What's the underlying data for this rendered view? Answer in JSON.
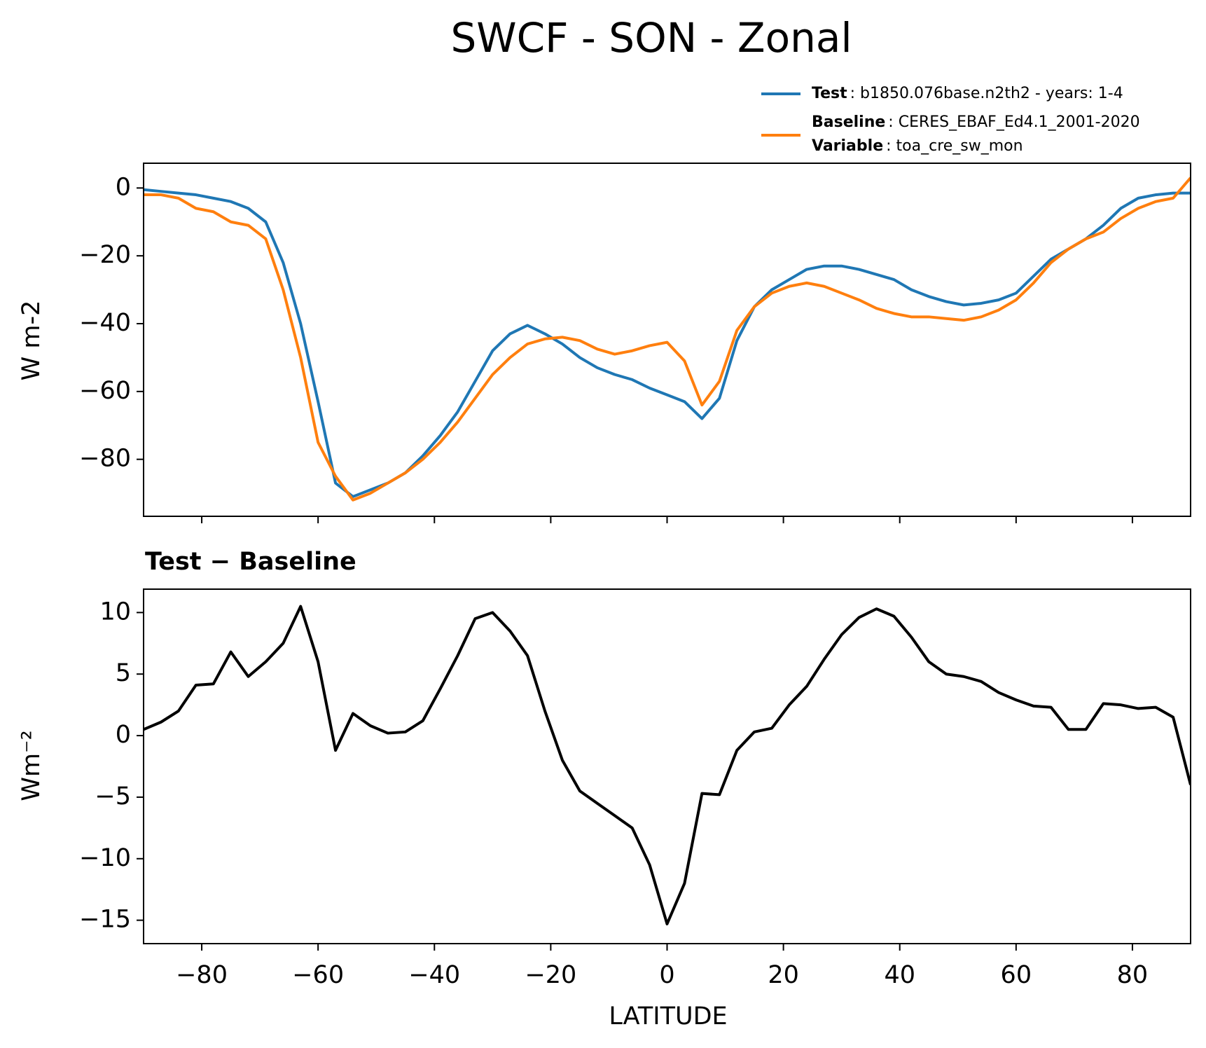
{
  "chart_data": [
    {
      "type": "line",
      "title": "SWCF - SON - Zonal",
      "ylabel": "W m-2",
      "x": [
        -90,
        -87,
        -84,
        -81,
        -78,
        -75,
        -72,
        -69,
        -66,
        -63,
        -60,
        -57,
        -54,
        -51,
        -48,
        -45,
        -42,
        -39,
        -36,
        -33,
        -30,
        -27,
        -24,
        -21,
        -18,
        -15,
        -12,
        -9,
        -6,
        -3,
        0,
        3,
        6,
        9,
        12,
        15,
        18,
        21,
        24,
        27,
        30,
        33,
        36,
        39,
        42,
        45,
        48,
        51,
        54,
        57,
        60,
        63,
        66,
        69,
        72,
        75,
        78,
        81,
        84,
        87,
        90
      ],
      "series": [
        {
          "name": "Test",
          "description": ": b1850.076base.n2th2 - years: 1-4",
          "color": "#1f77b4",
          "values": [
            -0.5,
            -1,
            -1.5,
            -2,
            -3,
            -4,
            -6,
            -10,
            -22,
            -40,
            -63,
            -87,
            -91,
            -89,
            -87,
            -84,
            -79,
            -73,
            -66,
            -57,
            -48,
            -43,
            -40.5,
            -43,
            -46,
            -50,
            -53,
            -55,
            -56.5,
            -59,
            -61,
            -63,
            -68,
            -62,
            -45,
            -35,
            -30,
            -27,
            -24,
            -23,
            -23,
            -24,
            -25.5,
            -27,
            -30,
            -32,
            -33.5,
            -34.5,
            -34,
            -33,
            -31,
            -26,
            -21,
            -18,
            -15,
            -11,
            -6,
            -3,
            -2,
            -1.5,
            -1.5
          ]
        },
        {
          "name": "Baseline",
          "description": ": CERES_EBAF_Ed4.1_2001-2020",
          "color": "#ff7f0e",
          "values": [
            -2,
            -2,
            -3,
            -6,
            -7,
            -10,
            -11,
            -15,
            -30,
            -50,
            -75,
            -85,
            -92,
            -90,
            -87,
            -84,
            -80,
            -75,
            -69,
            -62,
            -55,
            -50,
            -46,
            -44.5,
            -44,
            -45,
            -47.5,
            -49,
            -48,
            -46.5,
            -45.5,
            -51,
            -64,
            -57,
            -42,
            -35,
            -31,
            -29,
            -28,
            -29,
            -31,
            -33,
            -35.5,
            -37,
            -38,
            -38,
            -38.5,
            -39,
            -38,
            -36,
            -33,
            -28,
            -22,
            -18,
            -15,
            -13,
            -9,
            -6,
            -4,
            -3,
            3
          ]
        }
      ],
      "variable_name": "Variable",
      "variable": ": toa_cre_sw_mon",
      "xlim": [
        -90,
        90
      ],
      "xticks": [
        -80,
        -60,
        -40,
        -20,
        0,
        20,
        40,
        60,
        80
      ],
      "ylim": [
        -96.8,
        7.3
      ],
      "yticks": [
        {
          "value": 0,
          "label": "0"
        },
        {
          "value": -20,
          "label": "−20"
        },
        {
          "value": -40,
          "label": "−40"
        },
        {
          "value": -60,
          "label": "−60"
        },
        {
          "value": -80,
          "label": "−80"
        }
      ]
    },
    {
      "type": "line",
      "title": "Test − Baseline",
      "ylabel": "Wm⁻²",
      "xlabel": "LATITUDE",
      "x": [
        -90,
        -87,
        -84,
        -81,
        -78,
        -75,
        -72,
        -69,
        -66,
        -63,
        -60,
        -57,
        -54,
        -51,
        -48,
        -45,
        -42,
        -39,
        -36,
        -33,
        -30,
        -27,
        -24,
        -21,
        -18,
        -15,
        -12,
        -9,
        -6,
        -3,
        0,
        3,
        6,
        9,
        12,
        15,
        18,
        21,
        24,
        27,
        30,
        33,
        36,
        39,
        42,
        45,
        48,
        51,
        54,
        57,
        60,
        63,
        66,
        69,
        72,
        75,
        78,
        81,
        84,
        87,
        90
      ],
      "series": [
        {
          "color": "#000000",
          "values": [
            0.5,
            1.1,
            2,
            4.1,
            4.2,
            6.8,
            4.8,
            6,
            7.5,
            10.5,
            6,
            -1.2,
            1.8,
            0.8,
            0.2,
            0.3,
            1.2,
            3.8,
            6.5,
            9.5,
            10,
            8.5,
            6.5,
            2,
            -2,
            -4.5,
            -5.5,
            -6.5,
            -7.5,
            -10.5,
            -15.3,
            -12,
            -4.7,
            -4.8,
            -1.2,
            0.3,
            0.6,
            2.5,
            4,
            6.2,
            8.2,
            9.6,
            10.3,
            9.7,
            8,
            6,
            5,
            4.8,
            4.4,
            3.5,
            2.9,
            2.4,
            2.3,
            0.5,
            0.5,
            2.6,
            2.5,
            2.2,
            2.3,
            1.5,
            -4
          ]
        }
      ],
      "xlim": [
        -90,
        90
      ],
      "xticks": [
        {
          "value": -80,
          "label": "−80"
        },
        {
          "value": -60,
          "label": "−60"
        },
        {
          "value": -40,
          "label": "−40"
        },
        {
          "value": -20,
          "label": "−20"
        },
        {
          "value": 0,
          "label": "0"
        },
        {
          "value": 20,
          "label": "20"
        },
        {
          "value": 40,
          "label": "40"
        },
        {
          "value": 60,
          "label": "60"
        },
        {
          "value": 80,
          "label": "80"
        }
      ],
      "ylim": [
        -16.9,
        11.9
      ],
      "yticks": [
        {
          "value": 10,
          "label": "10"
        },
        {
          "value": 5,
          "label": "5"
        },
        {
          "value": 0,
          "label": "0"
        },
        {
          "value": -5,
          "label": "−5"
        },
        {
          "value": -10,
          "label": "−10"
        },
        {
          "value": -15,
          "label": "−15"
        }
      ]
    }
  ]
}
